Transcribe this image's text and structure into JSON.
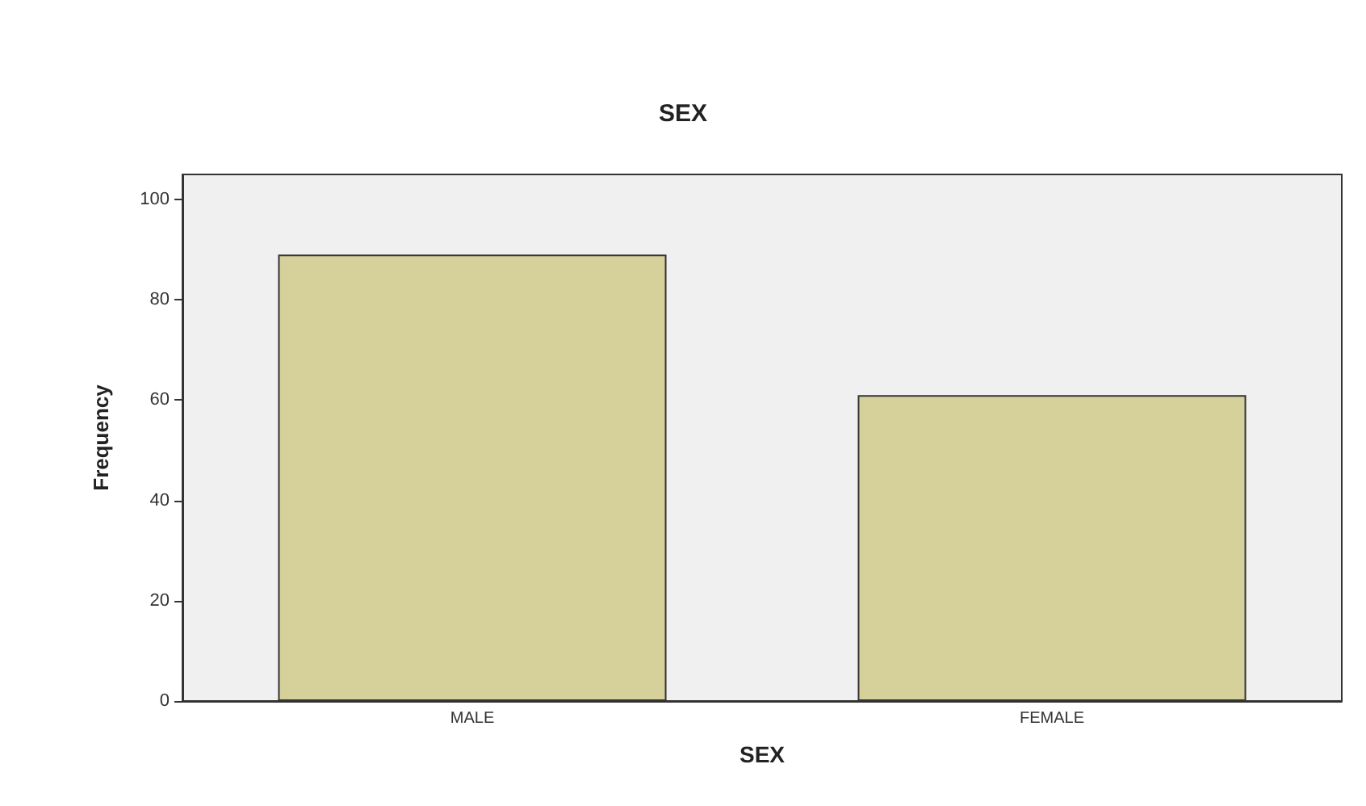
{
  "chart_data": {
    "type": "bar",
    "title": "SEX",
    "xlabel": "SEX",
    "ylabel": "Frequency",
    "categories": [
      "MALE",
      "FEMALE"
    ],
    "values": [
      89,
      61
    ],
    "color": "#d6d19b",
    "ylim": [
      0,
      105
    ],
    "yticks": [
      0,
      20,
      40,
      60,
      80,
      100
    ],
    "grid": false
  }
}
